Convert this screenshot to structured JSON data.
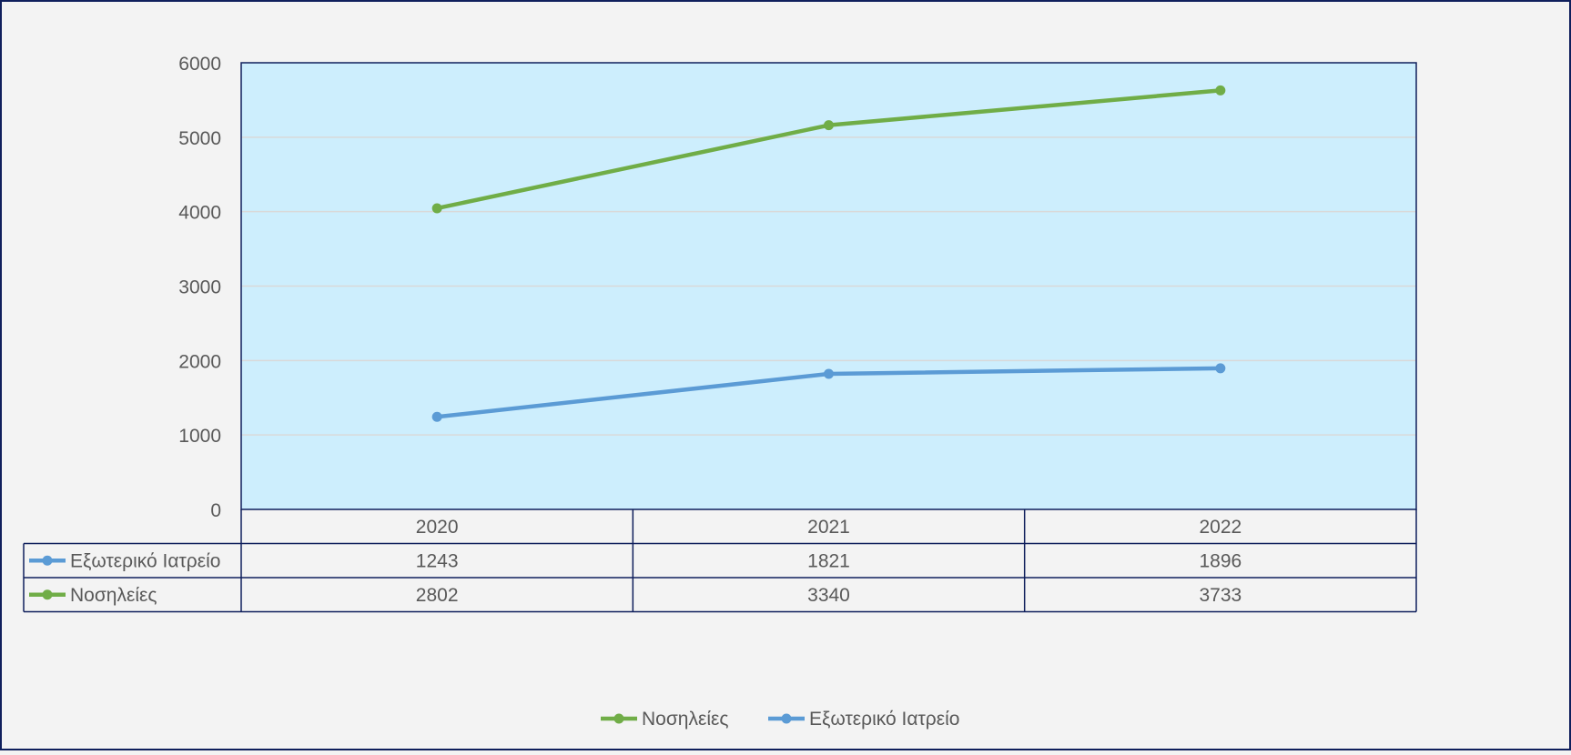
{
  "chart_data": {
    "type": "line",
    "title": "",
    "xlabel": "",
    "ylabel": "",
    "categories": [
      "2020",
      "2021",
      "2022"
    ],
    "ylim": [
      0,
      6000
    ],
    "yticks": [
      "0",
      "1000",
      "2000",
      "3000",
      "4000",
      "5000",
      "6000"
    ],
    "grid": true,
    "stacked": true,
    "legend_position": "bottom",
    "plot_background": "#cdeefd",
    "chart_background": "#f3f3f3",
    "border_color": "#0f1f5c",
    "series": [
      {
        "name": "Εξωτερικό Ιατρείο",
        "values": [
          1243,
          1821,
          1896
        ],
        "color": "#5b9bd5"
      },
      {
        "name": "Νοσηλείες",
        "values": [
          2802,
          3340,
          3733
        ],
        "color": "#70ad47"
      }
    ],
    "legend_order": [
      "Νοσηλείες",
      "Εξωτερικό Ιατρείο"
    ]
  }
}
